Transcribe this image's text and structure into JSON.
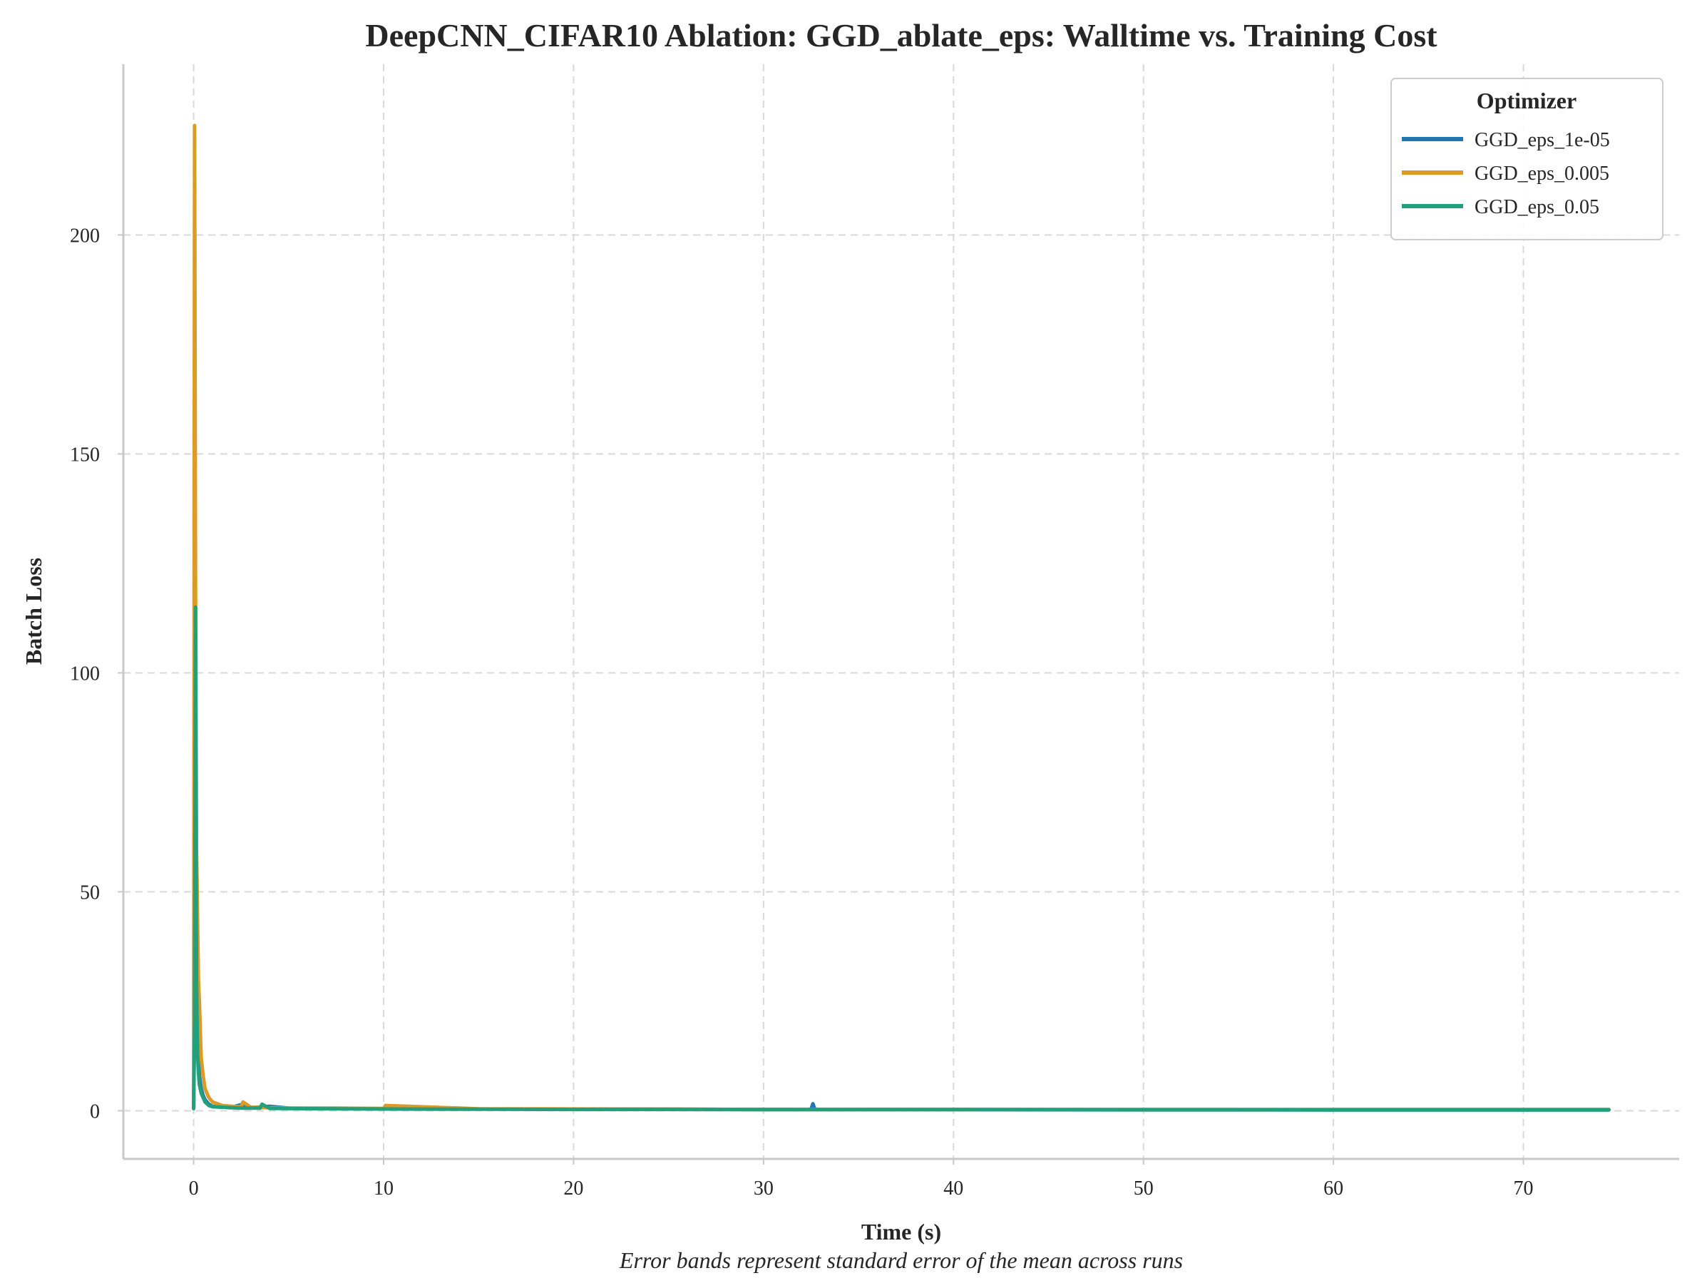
{
  "chart_data": {
    "type": "line",
    "title": "DeepCNN_CIFAR10 Ablation: GGD_ablate_eps: Walltime vs. Training Cost",
    "xlabel": "Time (s)",
    "ylabel": "Batch Loss",
    "footnote": "Error bands represent standard error of the mean across runs",
    "xlim": [
      -3.7,
      78.2
    ],
    "ylim": [
      -11,
      239
    ],
    "xticks": [
      0,
      10,
      20,
      30,
      40,
      50,
      60,
      70
    ],
    "yticks": [
      0,
      50,
      100,
      150,
      200
    ],
    "grid": true,
    "legend": {
      "title": "Optimizer",
      "placement": "top-right"
    },
    "series": [
      {
        "name": "GGD_eps_1e-05",
        "color": "#1f77b4",
        "x": [
          0.0,
          0.05,
          0.1,
          0.15,
          0.2,
          0.25,
          0.3,
          0.4,
          0.5,
          0.6,
          0.8,
          1.0,
          1.5,
          2.0,
          2.5,
          3.0,
          4.0,
          5.0,
          7.5,
          10.0,
          15.0,
          20.0,
          25.0,
          30.0,
          32.5,
          32.6,
          32.7,
          35.0,
          40.0,
          45.0,
          50.0,
          55.0,
          60.0,
          65.0,
          70.0,
          74.5
        ],
        "y": [
          0.5,
          27,
          102,
          45,
          20,
          12,
          8,
          5,
          3.5,
          2.5,
          1.5,
          1.0,
          0.9,
          0.8,
          1.4,
          0.7,
          1.0,
          0.6,
          0.5,
          0.5,
          0.4,
          0.4,
          0.35,
          0.3,
          0.3,
          1.6,
          0.3,
          0.3,
          0.3,
          0.25,
          0.25,
          0.25,
          0.2,
          0.2,
          0.2,
          0.2
        ]
      },
      {
        "name": "GGD_eps_0.005",
        "color": "#de9a27",
        "x": [
          0.0,
          0.05,
          0.1,
          0.15,
          0.2,
          0.25,
          0.3,
          0.35,
          0.4,
          0.5,
          0.6,
          0.8,
          1.0,
          1.5,
          2.0,
          2.5,
          2.6,
          3.0,
          4.0,
          5.0,
          7.5,
          10.0,
          10.1,
          15.0,
          20.0,
          25.0,
          30.0,
          40.0,
          50.0,
          60.0,
          70.0,
          74.5
        ],
        "y": [
          1.0,
          225,
          120,
          60,
          46,
          30,
          25,
          18,
          12,
          8,
          5,
          3,
          2,
          1.2,
          1.0,
          0.9,
          2.0,
          0.8,
          0.7,
          0.6,
          0.6,
          0.5,
          1.2,
          0.45,
          0.4,
          0.35,
          0.3,
          0.3,
          0.3,
          0.3,
          0.3,
          0.3
        ]
      },
      {
        "name": "GGD_eps_0.05",
        "color": "#22a07c",
        "x": [
          0.0,
          0.05,
          0.1,
          0.15,
          0.2,
          0.25,
          0.3,
          0.4,
          0.5,
          0.6,
          0.8,
          1.0,
          1.5,
          2.0,
          2.5,
          3.0,
          3.5,
          3.6,
          4.0,
          5.0,
          7.5,
          10.0,
          15.0,
          20.0,
          25.0,
          30.0,
          40.0,
          50.0,
          60.0,
          70.0,
          74.5
        ],
        "y": [
          0.5,
          20,
          115,
          30,
          14,
          9,
          6,
          4,
          3,
          2,
          1.2,
          0.9,
          0.8,
          0.7,
          0.6,
          0.6,
          0.6,
          1.5,
          0.55,
          0.5,
          0.45,
          0.4,
          0.35,
          0.3,
          0.3,
          0.25,
          0.25,
          0.2,
          0.2,
          0.2,
          0.2
        ]
      }
    ]
  }
}
